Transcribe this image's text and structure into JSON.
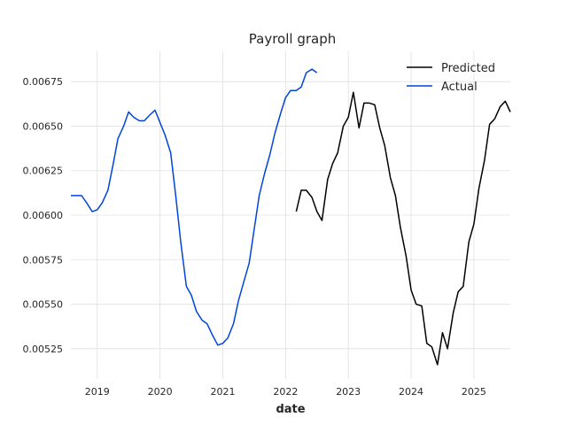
{
  "chart_data": {
    "type": "line",
    "title": "Payroll graph",
    "xlabel": "date",
    "ylabel": "",
    "grid": true,
    "legend_position": "top-right",
    "xlim": [
      2018.58,
      2025.58
    ],
    "ylim": [
      0.00508,
      0.00692
    ],
    "x_ticks": [
      {
        "value": 2019,
        "label": "2019"
      },
      {
        "value": 2020,
        "label": "2020"
      },
      {
        "value": 2021,
        "label": "2021"
      },
      {
        "value": 2022,
        "label": "2022"
      },
      {
        "value": 2023,
        "label": "2023"
      },
      {
        "value": 2024,
        "label": "2024"
      },
      {
        "value": 2025,
        "label": "2025"
      }
    ],
    "y_ticks": [
      {
        "value": 0.00525,
        "label": "0.00525"
      },
      {
        "value": 0.0055,
        "label": "0.00550"
      },
      {
        "value": 0.00575,
        "label": "0.00575"
      },
      {
        "value": 0.006,
        "label": "0.00600"
      },
      {
        "value": 0.00625,
        "label": "0.00625"
      },
      {
        "value": 0.0065,
        "label": "0.00650"
      },
      {
        "value": 0.00675,
        "label": "0.00675"
      }
    ],
    "series": [
      {
        "name": "Predicted",
        "color": "#000000",
        "x": [
          2022.17,
          2022.25,
          2022.33,
          2022.42,
          2022.5,
          2022.58,
          2022.67,
          2022.75,
          2022.83,
          2022.92,
          2023.0,
          2023.08,
          2023.17,
          2023.25,
          2023.33,
          2023.42,
          2023.5,
          2023.58,
          2023.67,
          2023.75,
          2023.83,
          2023.92,
          2024.0,
          2024.08,
          2024.17,
          2024.25,
          2024.33,
          2024.42,
          2024.5,
          2024.58,
          2024.67,
          2024.75,
          2024.83,
          2024.92,
          2025.0,
          2025.08,
          2025.17,
          2025.25,
          2025.33,
          2025.42,
          2025.5,
          2025.58
        ],
        "y": [
          0.00602,
          0.00614,
          0.00614,
          0.0061,
          0.00602,
          0.00597,
          0.0062,
          0.00629,
          0.00635,
          0.0065,
          0.00655,
          0.00669,
          0.00649,
          0.00663,
          0.00663,
          0.00662,
          0.00649,
          0.00639,
          0.00621,
          0.00611,
          0.00593,
          0.00577,
          0.00558,
          0.0055,
          0.00549,
          0.00528,
          0.00526,
          0.00516,
          0.00534,
          0.00525,
          0.00545,
          0.00557,
          0.0056,
          0.00585,
          0.00595,
          0.00615,
          0.00631,
          0.00651,
          0.00654,
          0.00661,
          0.00664,
          0.00658
        ]
      },
      {
        "name": "Actual",
        "color": "#0044dd",
        "x": [
          2018.58,
          2018.67,
          2018.75,
          2018.83,
          2018.92,
          2019.0,
          2019.08,
          2019.17,
          2019.25,
          2019.33,
          2019.42,
          2019.5,
          2019.58,
          2019.67,
          2019.75,
          2019.83,
          2019.92,
          2020.0,
          2020.08,
          2020.17,
          2020.25,
          2020.33,
          2020.42,
          2020.5,
          2020.58,
          2020.67,
          2020.75,
          2020.83,
          2020.92,
          2021.0,
          2021.08,
          2021.17,
          2021.25,
          2021.33,
          2021.42,
          2021.5,
          2021.58,
          2021.67,
          2021.75,
          2021.83,
          2021.92,
          2022.0,
          2022.08,
          2022.17,
          2022.25,
          2022.33,
          2022.42,
          2022.5
        ],
        "y": [
          0.00611,
          0.00611,
          0.00611,
          0.00607,
          0.00602,
          0.00603,
          0.00607,
          0.00614,
          0.00628,
          0.00643,
          0.0065,
          0.00658,
          0.00655,
          0.00653,
          0.00653,
          0.00656,
          0.00659,
          0.00652,
          0.00645,
          0.00635,
          0.00611,
          0.00585,
          0.0056,
          0.00555,
          0.00546,
          0.00541,
          0.00539,
          0.00533,
          0.00527,
          0.00528,
          0.00531,
          0.00539,
          0.00552,
          0.00562,
          0.00573,
          0.00592,
          0.00611,
          0.00624,
          0.00634,
          0.00646,
          0.00657,
          0.00666,
          0.0067,
          0.0067,
          0.00672,
          0.0068,
          0.00682,
          0.0068
        ]
      }
    ]
  }
}
